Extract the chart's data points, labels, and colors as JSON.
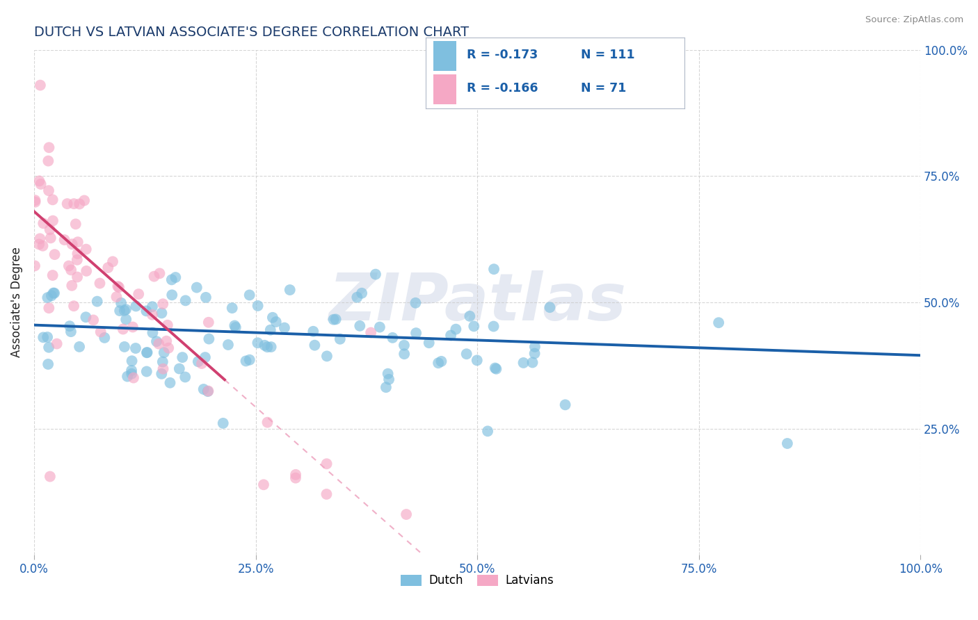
{
  "title": "DUTCH VS LATVIAN ASSOCIATE'S DEGREE CORRELATION CHART",
  "source": "Source: ZipAtlas.com",
  "ylabel": "Associate's Degree",
  "dutch_R": -0.173,
  "dutch_N": 111,
  "latvian_R": -0.166,
  "latvian_N": 71,
  "dutch_color": "#7fbfdf",
  "latvian_color": "#f5a8c5",
  "dutch_line_color": "#1a5fa8",
  "latvian_line_color": "#d04070",
  "latvian_dash_color": "#f0b0c8",
  "title_color": "#1a3a6b",
  "axis_label_color": "#2060b0",
  "text_color": "#222222",
  "background_color": "#ffffff",
  "grid_color": "#cccccc",
  "xlim": [
    0.0,
    1.0
  ],
  "ylim": [
    0.0,
    1.0
  ],
  "xtick_vals": [
    0.0,
    0.25,
    0.5,
    0.75,
    1.0
  ],
  "xtick_labels": [
    "0.0%",
    "25.0%",
    "50.0%",
    "75.0%",
    "100.0%"
  ],
  "ytick_vals": [
    0.25,
    0.5,
    0.75,
    1.0
  ],
  "ytick_labels": [
    "25.0%",
    "50.0%",
    "75.0%",
    "100.0%"
  ],
  "watermark": "ZIPatlas",
  "legend_R_color": "#1a5fa8",
  "legend_N_color": "#1a5fa8"
}
